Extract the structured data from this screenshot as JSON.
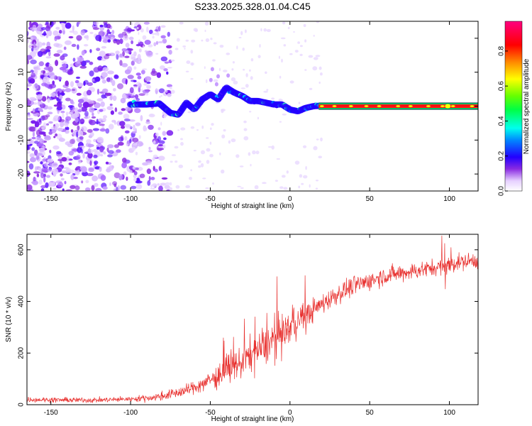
{
  "figure": {
    "title": "S233.2025.328.01.04.C45"
  },
  "chart_data": [
    {
      "type": "heatmap",
      "name": "spectrogram",
      "xlabel": "Height of straight line (km)",
      "ylabel": "Frequency (Hz)",
      "xlim": [
        -165,
        118
      ],
      "ylim": [
        -25,
        25
      ],
      "xticks": [
        -150,
        -100,
        -50,
        0,
        50,
        100
      ],
      "xtick_labels": [
        "-150",
        "-100",
        "-50",
        "0",
        "50",
        "100"
      ],
      "yticks": [
        -20,
        -10,
        0,
        10,
        20
      ],
      "ytick_labels": [
        "-20",
        "-10",
        "0",
        "10",
        "20"
      ],
      "colorbar": {
        "label": "Normalized spectral amplitude",
        "range": [
          0,
          0.97
        ],
        "ticks": [
          0.0,
          0.2,
          0.4,
          0.6,
          0.8
        ],
        "tick_labels": [
          "0.0",
          "0.2",
          "0.4",
          "0.6",
          "0.8"
        ]
      },
      "ridge": {
        "description_points_km_hz": [
          [
            -100,
            0.5
          ],
          [
            -90,
            0.5
          ],
          [
            -82,
            0.8
          ],
          [
            -75,
            -2
          ],
          [
            -70,
            -2.5
          ],
          [
            -65,
            1
          ],
          [
            -60,
            -1
          ],
          [
            -55,
            2
          ],
          [
            -50,
            3.5
          ],
          [
            -45,
            2
          ],
          [
            -40,
            5.5
          ],
          [
            -35,
            4
          ],
          [
            -30,
            3
          ],
          [
            -25,
            1.5
          ],
          [
            -20,
            1.5
          ],
          [
            -15,
            1
          ],
          [
            -10,
            0.5
          ],
          [
            -5,
            0.5
          ],
          [
            0,
            -1
          ],
          [
            5,
            -1.5
          ],
          [
            10,
            -0.5
          ],
          [
            15,
            0
          ],
          [
            25,
            0.3
          ],
          [
            40,
            0
          ],
          [
            118,
            0
          ]
        ],
        "steady_from_km": 18,
        "steady_frequency_hz": 0
      }
    },
    {
      "type": "line",
      "name": "snr",
      "xlabel": "Height of straight line (km)",
      "ylabel": "SNR (10 * v/v)",
      "xlim": [
        -165,
        118
      ],
      "ylim": [
        0,
        660
      ],
      "xticks": [
        -150,
        -100,
        -50,
        0,
        50,
        100
      ],
      "xtick_labels": [
        "-150",
        "-100",
        "-50",
        "0",
        "50",
        "100"
      ],
      "yticks": [
        0,
        200,
        400,
        600
      ],
      "ytick_labels": [
        "0",
        "200",
        "400",
        "600"
      ],
      "series": [
        {
          "name": "SNR",
          "color": "#e8312f",
          "trend_points_km": [
            [
              -165,
              20
            ],
            [
              -140,
              18
            ],
            [
              -120,
              18
            ],
            [
              -100,
              22
            ],
            [
              -85,
              28
            ],
            [
              -75,
              40
            ],
            [
              -65,
              55
            ],
            [
              -55,
              80
            ],
            [
              -45,
              110
            ],
            [
              -35,
              150
            ],
            [
              -25,
              190
            ],
            [
              -15,
              230
            ],
            [
              -8,
              270
            ],
            [
              0,
              300
            ],
            [
              10,
              345
            ],
            [
              20,
              390
            ],
            [
              30,
              430
            ],
            [
              40,
              460
            ],
            [
              50,
              480
            ],
            [
              60,
              500
            ],
            [
              70,
              510
            ],
            [
              80,
              520
            ],
            [
              90,
              530
            ],
            [
              100,
              545
            ],
            [
              110,
              555
            ],
            [
              118,
              560
            ]
          ],
          "noise_points_km": [
            [
              -165,
              10
            ],
            [
              -100,
              10
            ],
            [
              -60,
              25
            ],
            [
              -40,
              50
            ],
            [
              -20,
              70
            ],
            [
              0,
              60
            ],
            [
              20,
              40
            ],
            [
              60,
              35
            ],
            [
              118,
              30
            ]
          ]
        }
      ]
    }
  ]
}
